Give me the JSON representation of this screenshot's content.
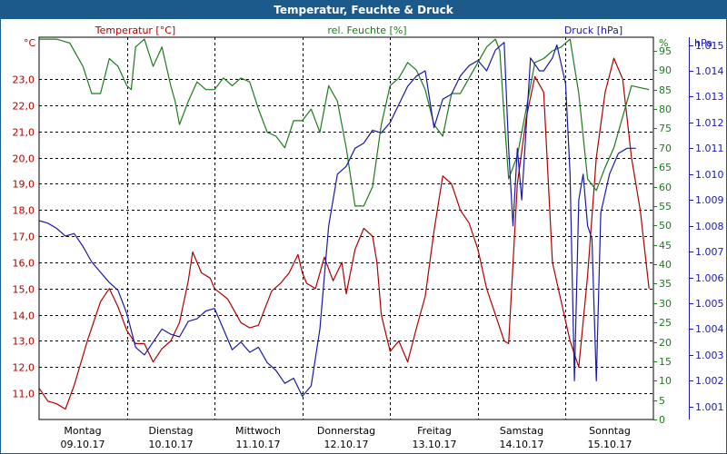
{
  "title": "Temperatur, Feuchte & Druck",
  "colors": {
    "temp": "#b00000",
    "hum": "#1e7a1e",
    "pres": "#1a1aa8",
    "title_bg": "#1d5a8c",
    "grid": "#000000"
  },
  "chart_data": {
    "type": "line",
    "title": "Temperatur, Feuchte & Druck",
    "days": [
      {
        "name": "Montag",
        "date": "09.10.17"
      },
      {
        "name": "Dienstag",
        "date": "10.10.17"
      },
      {
        "name": "Mittwoch",
        "date": "11.10.17"
      },
      {
        "name": "Donnerstag",
        "date": "12.10.17"
      },
      {
        "name": "Freitag",
        "date": "13.10.17"
      },
      {
        "name": "Samstag",
        "date": "14.10.17"
      },
      {
        "name": "Sonntag",
        "date": "15.10.17"
      }
    ],
    "x_range": [
      0,
      7
    ],
    "axes": {
      "temp": {
        "label": "Temperatur [°C]",
        "unit": "°C",
        "range": [
          10.0,
          24.6
        ],
        "ticks": [
          "11,0",
          "12,0",
          "13,0",
          "14,0",
          "15,0",
          "16,0",
          "17,0",
          "18,0",
          "19,0",
          "20,0",
          "21,0",
          "22,0",
          "23,0"
        ]
      },
      "hum": {
        "label": "rel. Feuchte [%]",
        "unit": "%",
        "range": [
          0,
          98.5
        ],
        "ticks": [
          "0",
          "5",
          "10",
          "15",
          "20",
          "25",
          "30",
          "35",
          "40",
          "45",
          "50",
          "55",
          "60",
          "65",
          "70",
          "75",
          "80",
          "85",
          "90",
          "95"
        ]
      },
      "pres": {
        "label": "Druck [hPa]",
        "unit": "hPa",
        "range": [
          1.0005,
          1.0153
        ],
        "ticks": [
          "1.001",
          "1.002",
          "1.003",
          "1.004",
          "1.005",
          "1.006",
          "1.007",
          "1.008",
          "1.009",
          "1.010",
          "1.011",
          "1.012",
          "1.013",
          "1.014",
          "1.015"
        ]
      }
    },
    "series": [
      {
        "name": "Temperatur [°C]",
        "axis": "temp",
        "points": [
          [
            0.0,
            11.2
          ],
          [
            0.1,
            10.7
          ],
          [
            0.2,
            10.6
          ],
          [
            0.3,
            10.4
          ],
          [
            0.4,
            11.3
          ],
          [
            0.55,
            13.0
          ],
          [
            0.7,
            14.5
          ],
          [
            0.8,
            15.0
          ],
          [
            0.9,
            14.3
          ],
          [
            1.0,
            13.4
          ],
          [
            1.1,
            12.9
          ],
          [
            1.2,
            12.9
          ],
          [
            1.3,
            12.2
          ],
          [
            1.4,
            12.7
          ],
          [
            1.5,
            13.0
          ],
          [
            1.6,
            13.7
          ],
          [
            1.7,
            15.3
          ],
          [
            1.75,
            16.4
          ],
          [
            1.85,
            15.6
          ],
          [
            1.95,
            15.4
          ],
          [
            2.0,
            15.0
          ],
          [
            2.15,
            14.6
          ],
          [
            2.3,
            13.7
          ],
          [
            2.4,
            13.5
          ],
          [
            2.5,
            13.6
          ],
          [
            2.65,
            14.9
          ],
          [
            2.75,
            15.2
          ],
          [
            2.85,
            15.6
          ],
          [
            2.95,
            16.3
          ],
          [
            3.0,
            15.6
          ],
          [
            3.05,
            15.2
          ],
          [
            3.15,
            15.0
          ],
          [
            3.25,
            16.2
          ],
          [
            3.35,
            15.3
          ],
          [
            3.45,
            16.0
          ],
          [
            3.5,
            14.8
          ],
          [
            3.6,
            16.5
          ],
          [
            3.7,
            17.3
          ],
          [
            3.8,
            17.0
          ],
          [
            3.85,
            16.0
          ],
          [
            3.9,
            14.0
          ],
          [
            4.0,
            12.6
          ],
          [
            4.1,
            13.0
          ],
          [
            4.2,
            12.2
          ],
          [
            4.3,
            13.5
          ],
          [
            4.4,
            14.7
          ],
          [
            4.5,
            17.2
          ],
          [
            4.6,
            19.3
          ],
          [
            4.7,
            19.0
          ],
          [
            4.8,
            18.0
          ],
          [
            4.9,
            17.5
          ],
          [
            5.0,
            16.5
          ],
          [
            5.1,
            15.0
          ],
          [
            5.2,
            14.0
          ],
          [
            5.3,
            13.0
          ],
          [
            5.35,
            12.9
          ],
          [
            5.45,
            19.0
          ],
          [
            5.55,
            21.5
          ],
          [
            5.65,
            23.1
          ],
          [
            5.75,
            22.5
          ],
          [
            5.85,
            16.0
          ],
          [
            5.95,
            14.5
          ],
          [
            6.05,
            13.0
          ],
          [
            6.15,
            12.0
          ],
          [
            6.25,
            15.5
          ],
          [
            6.35,
            20.0
          ],
          [
            6.45,
            22.5
          ],
          [
            6.55,
            23.8
          ],
          [
            6.65,
            23.0
          ],
          [
            6.75,
            20.0
          ],
          [
            6.85,
            18.0
          ],
          [
            6.95,
            15.0
          ]
        ]
      },
      {
        "name": "rel. Feuchte [%]",
        "axis": "hum",
        "points": [
          [
            0.0,
            98
          ],
          [
            0.2,
            98
          ],
          [
            0.35,
            97
          ],
          [
            0.5,
            91
          ],
          [
            0.6,
            84
          ],
          [
            0.7,
            84
          ],
          [
            0.8,
            93
          ],
          [
            0.9,
            91
          ],
          [
            1.0,
            86
          ],
          [
            1.05,
            85
          ],
          [
            1.1,
            96
          ],
          [
            1.2,
            98
          ],
          [
            1.3,
            91
          ],
          [
            1.4,
            96
          ],
          [
            1.5,
            86
          ],
          [
            1.55,
            82
          ],
          [
            1.6,
            76
          ],
          [
            1.7,
            82
          ],
          [
            1.8,
            87
          ],
          [
            1.9,
            85
          ],
          [
            2.0,
            85
          ],
          [
            2.1,
            88
          ],
          [
            2.2,
            86
          ],
          [
            2.3,
            88
          ],
          [
            2.4,
            87
          ],
          [
            2.5,
            80
          ],
          [
            2.6,
            74
          ],
          [
            2.7,
            73
          ],
          [
            2.8,
            70
          ],
          [
            2.9,
            77
          ],
          [
            3.0,
            77
          ],
          [
            3.1,
            80
          ],
          [
            3.2,
            74
          ],
          [
            3.3,
            86
          ],
          [
            3.4,
            82
          ],
          [
            3.5,
            70
          ],
          [
            3.6,
            55
          ],
          [
            3.7,
            55
          ],
          [
            3.8,
            60
          ],
          [
            3.9,
            76
          ],
          [
            4.0,
            86
          ],
          [
            4.1,
            88
          ],
          [
            4.2,
            92
          ],
          [
            4.3,
            90
          ],
          [
            4.4,
            85
          ],
          [
            4.5,
            76
          ],
          [
            4.6,
            73
          ],
          [
            4.7,
            84
          ],
          [
            4.8,
            84
          ],
          [
            4.9,
            88
          ],
          [
            5.0,
            92
          ],
          [
            5.1,
            96
          ],
          [
            5.2,
            98
          ],
          [
            5.25,
            95
          ],
          [
            5.3,
            78
          ],
          [
            5.35,
            62
          ],
          [
            5.45,
            68
          ],
          [
            5.55,
            80
          ],
          [
            5.65,
            92
          ],
          [
            5.75,
            93
          ],
          [
            5.85,
            95
          ],
          [
            5.95,
            96
          ],
          [
            6.05,
            98
          ],
          [
            6.15,
            84
          ],
          [
            6.25,
            62
          ],
          [
            6.35,
            59
          ],
          [
            6.45,
            65
          ],
          [
            6.55,
            70
          ],
          [
            6.65,
            78
          ],
          [
            6.75,
            86
          ],
          [
            6.95,
            85
          ]
        ]
      },
      {
        "name": "Druck [hPa]",
        "axis": "pres",
        "points": [
          [
            0.0,
            1.0082
          ],
          [
            0.1,
            1.0081
          ],
          [
            0.2,
            1.0079
          ],
          [
            0.3,
            1.0076
          ],
          [
            0.4,
            1.0077
          ],
          [
            0.5,
            1.0072
          ],
          [
            0.6,
            1.0066
          ],
          [
            0.7,
            1.0062
          ],
          [
            0.8,
            1.0058
          ],
          [
            0.9,
            1.0055
          ],
          [
            1.0,
            1.0046
          ],
          [
            1.1,
            1.0033
          ],
          [
            1.2,
            1.003
          ],
          [
            1.3,
            1.0035
          ],
          [
            1.4,
            1.004
          ],
          [
            1.5,
            1.0038
          ],
          [
            1.6,
            1.0037
          ],
          [
            1.7,
            1.0043
          ],
          [
            1.8,
            1.0044
          ],
          [
            1.9,
            1.0047
          ],
          [
            2.0,
            1.0048
          ],
          [
            2.1,
            1.004
          ],
          [
            2.2,
            1.0032
          ],
          [
            2.3,
            1.0035
          ],
          [
            2.4,
            1.0031
          ],
          [
            2.5,
            1.0033
          ],
          [
            2.6,
            1.0027
          ],
          [
            2.7,
            1.0024
          ],
          [
            2.8,
            1.0019
          ],
          [
            2.9,
            1.0021
          ],
          [
            3.0,
            1.0014
          ],
          [
            3.1,
            1.0018
          ],
          [
            3.2,
            1.004
          ],
          [
            3.3,
            1.008
          ],
          [
            3.4,
            1.01
          ],
          [
            3.5,
            1.0103
          ],
          [
            3.6,
            1.011
          ],
          [
            3.7,
            1.0112
          ],
          [
            3.8,
            1.0117
          ],
          [
            3.9,
            1.0116
          ],
          [
            4.0,
            1.012
          ],
          [
            4.1,
            1.0127
          ],
          [
            4.2,
            1.0134
          ],
          [
            4.3,
            1.0138
          ],
          [
            4.4,
            1.014
          ],
          [
            4.5,
            1.0118
          ],
          [
            4.6,
            1.0129
          ],
          [
            4.7,
            1.0131
          ],
          [
            4.8,
            1.0138
          ],
          [
            4.9,
            1.0142
          ],
          [
            5.0,
            1.0144
          ],
          [
            5.1,
            1.014
          ],
          [
            5.2,
            1.0148
          ],
          [
            5.3,
            1.0151
          ],
          [
            5.35,
            1.011
          ],
          [
            5.4,
            1.008
          ],
          [
            5.45,
            1.011
          ],
          [
            5.5,
            1.009
          ],
          [
            5.6,
            1.0145
          ],
          [
            5.7,
            1.014
          ],
          [
            5.75,
            1.014
          ],
          [
            5.85,
            1.0145
          ],
          [
            5.9,
            1.015
          ],
          [
            6.0,
            1.0135
          ],
          [
            6.05,
            1.01
          ],
          [
            6.1,
            1.002
          ],
          [
            6.15,
            1.009
          ],
          [
            6.2,
            1.01
          ],
          [
            6.25,
            1.008
          ],
          [
            6.3,
            1.0075
          ],
          [
            6.35,
            1.002
          ],
          [
            6.4,
            1.0085
          ],
          [
            6.5,
            1.01
          ],
          [
            6.6,
            1.0108
          ],
          [
            6.7,
            1.011
          ],
          [
            6.8,
            1.011
          ]
        ]
      }
    ],
    "grid": true,
    "legend": "top"
  }
}
